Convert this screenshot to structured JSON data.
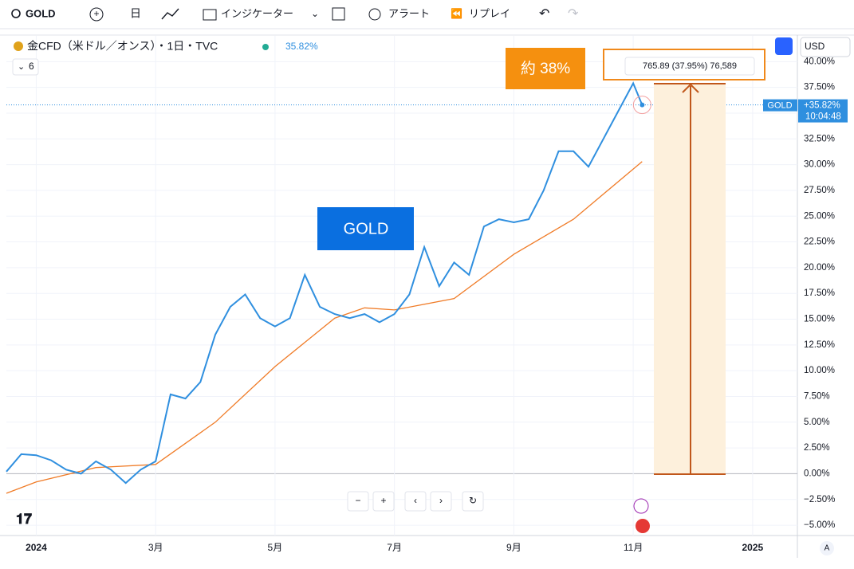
{
  "toolbar": {
    "symbol": "GOLD",
    "interval": "日",
    "indicators": "インジケーター",
    "alert": "アラート",
    "replay": "リプレイ"
  },
  "legend": {
    "title": "金CFD（米ドル／オンス）・1日・TVC",
    "change": "35.82%",
    "count": "6"
  },
  "currency": "USD",
  "price_tag": {
    "symbol": "GOLD",
    "change": "+35.82%",
    "time": "10:04:48"
  },
  "axis_mode": "A",
  "annotations": {
    "callout": "約 38%",
    "measure": "765.89 (37.95%) 76,589",
    "label": "GOLD"
  },
  "chart_data": {
    "type": "line",
    "xlim": [
      -0.5,
      12.75
    ],
    "xticks": [
      {
        "value": 0,
        "label": "2024"
      },
      {
        "value": 2,
        "label": "3月"
      },
      {
        "value": 4,
        "label": "5月"
      },
      {
        "value": 6,
        "label": "7月"
      },
      {
        "value": 8,
        "label": "9月"
      },
      {
        "value": 10,
        "label": "11月"
      },
      {
        "value": 12,
        "label": "2025"
      }
    ],
    "ylim": [
      -6,
      42.5
    ],
    "yticks": [
      {
        "value": 40,
        "label": "40.00%"
      },
      {
        "value": 37.5,
        "label": "37.50%"
      },
      {
        "value": 35,
        "label": "35.00%"
      },
      {
        "value": 32.5,
        "label": "32.50%"
      },
      {
        "value": 30,
        "label": "30.00%"
      },
      {
        "value": 27.5,
        "label": "27.50%"
      },
      {
        "value": 25,
        "label": "25.00%"
      },
      {
        "value": 22.5,
        "label": "22.50%"
      },
      {
        "value": 20,
        "label": "20.00%"
      },
      {
        "value": 17.5,
        "label": "17.50%"
      },
      {
        "value": 15,
        "label": "15.00%"
      },
      {
        "value": 12.5,
        "label": "12.50%"
      },
      {
        "value": 10,
        "label": "10.00%"
      },
      {
        "value": 7.5,
        "label": "7.50%"
      },
      {
        "value": 5,
        "label": "5.00%"
      },
      {
        "value": 2.5,
        "label": "2.50%"
      },
      {
        "value": 0,
        "label": "0.00%"
      },
      {
        "value": -2.5,
        "label": "−2.50%"
      },
      {
        "value": -5,
        "label": "−5.00%"
      }
    ],
    "grid": true,
    "series": [
      {
        "color": "#2f8fdf",
        "x": [
          -0.5,
          -0.25,
          0,
          0.25,
          0.5,
          0.75,
          1,
          1.25,
          1.5,
          1.75,
          2,
          2.25,
          2.5,
          2.75,
          3,
          3.25,
          3.5,
          3.75,
          4,
          4.25,
          4.5,
          4.75,
          5,
          5.25,
          5.5,
          5.75,
          6,
          6.25,
          6.5,
          6.75,
          7,
          7.25,
          7.5,
          7.75,
          8,
          8.25,
          8.5,
          8.75,
          9,
          9.25,
          9.5,
          9.75,
          10,
          10.15
        ],
        "values": [
          0.2,
          1.9,
          1.8,
          1.3,
          0.4,
          0,
          1.2,
          0.4,
          -0.9,
          0.4,
          1.2,
          7.7,
          7.3,
          8.9,
          13.5,
          16.2,
          17.4,
          15.1,
          14.3,
          15.1,
          19.3,
          16.2,
          15.5,
          15.1,
          15.5,
          14.7,
          15.5,
          17.4,
          22.0,
          18.2,
          20.5,
          19.3,
          24.0,
          24.7,
          24.4,
          24.7,
          27.5,
          31.3,
          31.3,
          29.8,
          32.5,
          35.2,
          37.9,
          35.8
        ]
      },
      {
        "color": "#f07c28",
        "x": [
          -0.5,
          0,
          1,
          2,
          3,
          4,
          5,
          5.5,
          6,
          7,
          8,
          9,
          10.15
        ],
        "values": [
          -1.9,
          -0.8,
          0.6,
          0.9,
          5.0,
          10.4,
          15.1,
          16.1,
          15.9,
          17.0,
          21.3,
          24.7,
          30.3
        ]
      }
    ]
  }
}
